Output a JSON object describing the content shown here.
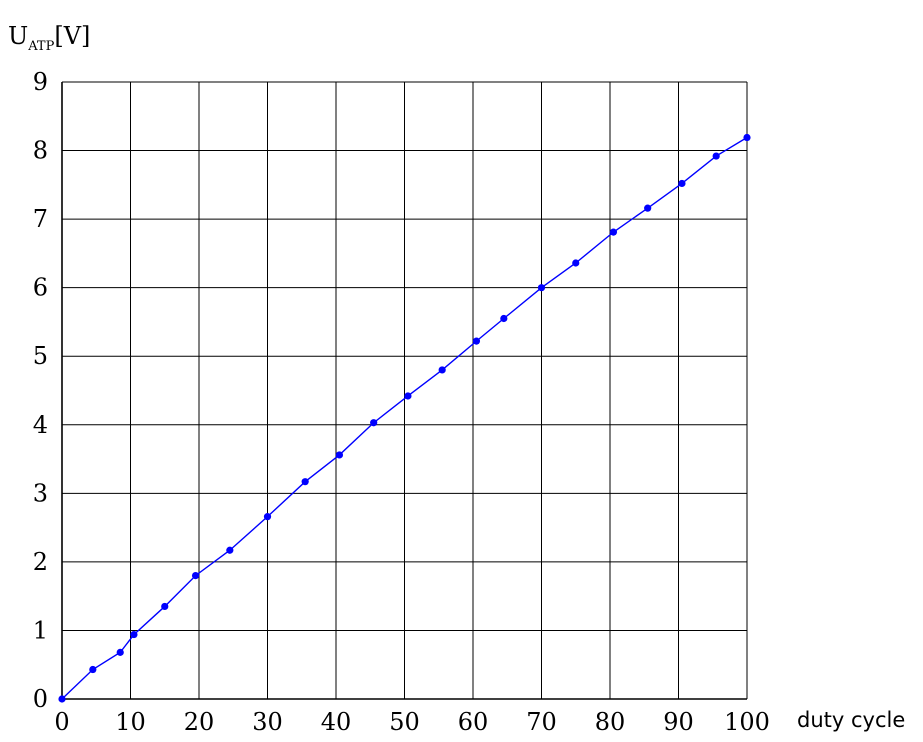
{
  "chart_data": {
    "type": "line",
    "ylabel": {
      "main": "U",
      "subscript": "ATP",
      "unit": "[V]"
    },
    "xlabel": "duty cycle",
    "xlim": [
      0,
      100
    ],
    "ylim": [
      0,
      9
    ],
    "xticks": [
      "0",
      "10",
      "20",
      "30",
      "40",
      "50",
      "60",
      "70",
      "80",
      "90",
      "100"
    ],
    "yticks": [
      "0",
      "1",
      "2",
      "3",
      "4",
      "5",
      "6",
      "7",
      "8",
      "9"
    ],
    "grid": true,
    "series": [
      {
        "color": "#0000ff",
        "marker": "circle",
        "points": [
          {
            "x": 0,
            "y": 0
          },
          {
            "x": 4.5,
            "y": 0.43
          },
          {
            "x": 8.5,
            "y": 0.68
          },
          {
            "x": 10.5,
            "y": 0.94
          },
          {
            "x": 15,
            "y": 1.35
          },
          {
            "x": 19.5,
            "y": 1.8
          },
          {
            "x": 24.5,
            "y": 2.17
          },
          {
            "x": 30,
            "y": 2.66
          },
          {
            "x": 35.5,
            "y": 3.17
          },
          {
            "x": 40.5,
            "y": 3.56
          },
          {
            "x": 45.5,
            "y": 4.03
          },
          {
            "x": 50.5,
            "y": 4.42
          },
          {
            "x": 55.5,
            "y": 4.8
          },
          {
            "x": 60.5,
            "y": 5.22
          },
          {
            "x": 64.5,
            "y": 5.55
          },
          {
            "x": 70,
            "y": 6.0
          },
          {
            "x": 75,
            "y": 6.36
          },
          {
            "x": 80.5,
            "y": 6.81
          },
          {
            "x": 85.5,
            "y": 7.16
          },
          {
            "x": 90.5,
            "y": 7.52
          },
          {
            "x": 95.5,
            "y": 7.92
          },
          {
            "x": 100,
            "y": 8.19
          }
        ]
      }
    ]
  }
}
